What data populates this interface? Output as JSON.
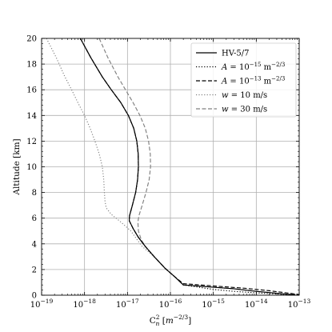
{
  "chart_data": {
    "type": "line",
    "title": "",
    "xlabel": "C_n^2 [m^{-2/3}]",
    "ylabel": "Altitude [km]",
    "xscale": "log",
    "xlim": [
      1e-19,
      1e-13
    ],
    "ylim": [
      0,
      20
    ],
    "grid": true,
    "legend_position": "top-right",
    "x_tick_labels": [
      {
        "base": "10",
        "exp": "−19"
      },
      {
        "base": "10",
        "exp": "−18"
      },
      {
        "base": "10",
        "exp": "−17"
      },
      {
        "base": "10",
        "exp": "−16"
      },
      {
        "base": "10",
        "exp": "−15"
      },
      {
        "base": "10",
        "exp": "−14"
      },
      {
        "base": "10",
        "exp": "−13"
      }
    ],
    "y_tick_labels": [
      "0",
      "2",
      "4",
      "6",
      "8",
      "10",
      "12",
      "14",
      "16",
      "18",
      "20"
    ],
    "series": [
      {
        "name": "HV-5/7",
        "style": "solid",
        "color": "#000000",
        "points": [
          [
            8e-19,
            20
          ],
          [
            1.4e-18,
            18.5
          ],
          [
            2.6e-18,
            17
          ],
          [
            4.2e-18,
            16
          ],
          [
            7e-18,
            15
          ],
          [
            1.05e-17,
            14
          ],
          [
            1.4e-17,
            13
          ],
          [
            1.65e-17,
            12
          ],
          [
            1.78e-17,
            11
          ],
          [
            1.8e-17,
            10
          ],
          [
            1.72e-17,
            9
          ],
          [
            1.55e-17,
            8
          ],
          [
            1.3e-17,
            7
          ],
          [
            1.12e-17,
            6.2
          ],
          [
            1.1e-17,
            5.8
          ],
          [
            1.35e-17,
            5.2
          ],
          [
            1.8e-17,
            4.5
          ],
          [
            2.6e-17,
            3.8
          ],
          [
            4.2e-17,
            3
          ],
          [
            7.5e-17,
            2.1
          ],
          [
            1.3e-16,
            1.4
          ],
          [
            2e-16,
            0.8
          ],
          [
            3e-15,
            0.5
          ],
          [
            1e-14,
            0.3
          ],
          [
            3e-14,
            0.15
          ],
          [
            8e-14,
            0.02
          ]
        ]
      },
      {
        "name": "A = 10^{-15} m^{-2/3}",
        "style": "dotted",
        "color": "#000000",
        "points": [
          [
            8e-19,
            20
          ],
          [
            1.4e-18,
            18.5
          ],
          [
            2.6e-18,
            17
          ],
          [
            4.2e-18,
            16
          ],
          [
            7e-18,
            15
          ],
          [
            1.05e-17,
            14
          ],
          [
            1.4e-17,
            13
          ],
          [
            1.65e-17,
            12
          ],
          [
            1.78e-17,
            11
          ],
          [
            1.8e-17,
            10
          ],
          [
            1.72e-17,
            9
          ],
          [
            1.55e-17,
            8
          ],
          [
            1.3e-17,
            7
          ],
          [
            1.12e-17,
            6.2
          ],
          [
            1.1e-17,
            5.8
          ],
          [
            1.35e-17,
            5.2
          ],
          [
            1.8e-17,
            4.5
          ],
          [
            2.6e-17,
            3.8
          ],
          [
            4.2e-17,
            3
          ],
          [
            7.5e-17,
            2.1
          ],
          [
            1.3e-16,
            1.4
          ],
          [
            2e-16,
            0.8
          ],
          [
            1e-15,
            0.45
          ],
          [
            3e-15,
            0.3
          ],
          [
            2e-14,
            0.12
          ],
          [
            8e-14,
            0.02
          ]
        ]
      },
      {
        "name": "A = 10^{-13} m^{-2/3}",
        "style": "dashed",
        "color": "#000000",
        "points": [
          [
            8e-19,
            20
          ],
          [
            1.4e-18,
            18.5
          ],
          [
            2.6e-18,
            17
          ],
          [
            4.2e-18,
            16
          ],
          [
            7e-18,
            15
          ],
          [
            1.05e-17,
            14
          ],
          [
            1.4e-17,
            13
          ],
          [
            1.65e-17,
            12
          ],
          [
            1.78e-17,
            11
          ],
          [
            1.8e-17,
            10
          ],
          [
            1.72e-17,
            9
          ],
          [
            1.55e-17,
            8
          ],
          [
            1.3e-17,
            7
          ],
          [
            1.12e-17,
            6.2
          ],
          [
            1.1e-17,
            5.8
          ],
          [
            1.35e-17,
            5.2
          ],
          [
            1.8e-17,
            4.5
          ],
          [
            2.6e-17,
            3.8
          ],
          [
            4.2e-17,
            3
          ],
          [
            7.5e-17,
            2.1
          ],
          [
            1.3e-16,
            1.4
          ],
          [
            2e-16,
            0.9
          ],
          [
            1e-15,
            0.72
          ],
          [
            5e-15,
            0.55
          ],
          [
            2e-14,
            0.35
          ],
          [
            6e-14,
            0.15
          ],
          [
            1e-13,
            0.05
          ]
        ]
      },
      {
        "name": "w = 10 m/s",
        "style": "dotted",
        "color": "#808080",
        "points": [
          [
            1.3e-19,
            20
          ],
          [
            2.2e-19,
            18.5
          ],
          [
            3.5e-19,
            17
          ],
          [
            5e-19,
            16
          ],
          [
            7e-19,
            15
          ],
          [
            1e-18,
            14
          ],
          [
            1.35e-18,
            13
          ],
          [
            1.75e-18,
            12
          ],
          [
            2.2e-18,
            11
          ],
          [
            2.6e-18,
            10
          ],
          [
            2.8e-18,
            9
          ],
          [
            2.9e-18,
            8
          ],
          [
            3e-18,
            7.3
          ],
          [
            3.2e-18,
            6.8
          ],
          [
            4.2e-18,
            6.3
          ],
          [
            7e-18,
            5.7
          ],
          [
            1.2e-17,
            5
          ],
          [
            1.7e-17,
            4.3
          ],
          [
            2.2e-17,
            3.8
          ],
          [
            4.2e-17,
            3
          ],
          [
            7.5e-17,
            2.1
          ],
          [
            1.3e-16,
            1.4
          ],
          [
            2e-16,
            0.8
          ],
          [
            3e-15,
            0.5
          ],
          [
            1e-14,
            0.3
          ],
          [
            3e-14,
            0.15
          ],
          [
            8e-14,
            0.02
          ]
        ]
      },
      {
        "name": "w = 30 m/s",
        "style": "dashed",
        "color": "#808080",
        "points": [
          [
            2.2e-18,
            20
          ],
          [
            3.5e-18,
            18.5
          ],
          [
            6e-18,
            17
          ],
          [
            9e-18,
            16
          ],
          [
            1.35e-17,
            15
          ],
          [
            1.95e-17,
            14
          ],
          [
            2.6e-17,
            13
          ],
          [
            3.1e-17,
            12
          ],
          [
            3.4e-17,
            11
          ],
          [
            3.45e-17,
            10
          ],
          [
            3.2e-17,
            9
          ],
          [
            2.7e-17,
            8
          ],
          [
            2.2e-17,
            7
          ],
          [
            1.85e-17,
            6.2
          ],
          [
            1.75e-17,
            5.7
          ],
          [
            1.8e-17,
            5
          ],
          [
            2.1e-17,
            4.3
          ],
          [
            2.6e-17,
            3.8
          ],
          [
            4.2e-17,
            3
          ],
          [
            7.5e-17,
            2.1
          ],
          [
            1.3e-16,
            1.4
          ],
          [
            2e-16,
            0.8
          ],
          [
            3e-15,
            0.5
          ],
          [
            1e-14,
            0.3
          ],
          [
            3e-14,
            0.15
          ],
          [
            8e-14,
            0.02
          ]
        ]
      }
    ]
  }
}
